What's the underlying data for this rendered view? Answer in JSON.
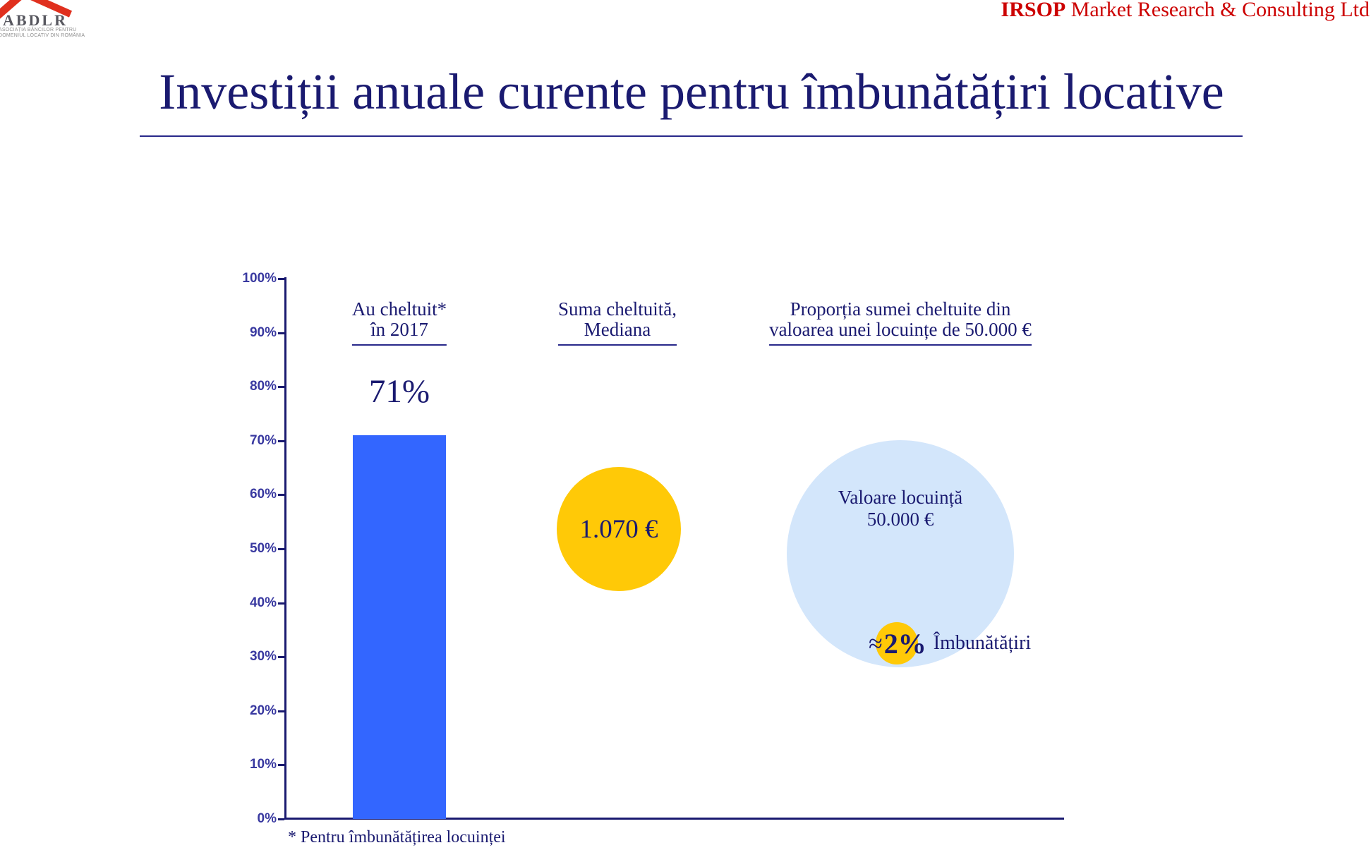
{
  "header": {
    "logo_acronym": "ABDLR",
    "logo_tagline_line1": "ASOCIAȚIA BĂNCILOR PENTRU",
    "logo_tagline_line2": "DOMENIUL LOCATIV DIN ROMÂNIA",
    "agency_bold": "IRSOP",
    "agency_rest": " Market Research & Consulting Ltd"
  },
  "title": "Investiții anuale curente pentru îmbunătățiri locative",
  "chart_data": {
    "type": "bar",
    "title": "Investiții anuale curente pentru îmbunătățiri locative",
    "ylim": [
      0,
      100
    ],
    "yticks": [
      "0%",
      "10%",
      "20%",
      "30%",
      "40%",
      "50%",
      "60%",
      "70%",
      "80%",
      "90%",
      "100%"
    ],
    "grid": false,
    "columns": [
      {
        "kind": "bar",
        "header_line1": "Au cheltuit*",
        "header_line2": "în 2017",
        "value_pct": 71,
        "value_label": "71%",
        "bar_color": "#3366FF"
      },
      {
        "kind": "bubble",
        "header_line1": "Suma cheltuită,",
        "header_line2": "Mediana",
        "bubble_label": "1.070 €",
        "bubble_color": "#FFC907"
      },
      {
        "kind": "bubble-comparison",
        "header_line1": "Proporția sumei cheltuite din",
        "header_line2": "valoarea unei locuințe de 50.000 €",
        "big_bubble_line1": "Valoare locuință",
        "big_bubble_line2": "50.000 €",
        "big_bubble_color": "#D3E6FB",
        "small_bubble_approx": "≈",
        "small_bubble_pct": "2%",
        "small_bubble_label": "Îmbunătățiri",
        "small_bubble_color": "#FFC907"
      }
    ],
    "footnote": "* Pentru îmbunătățirea locuinței"
  },
  "colors": {
    "navy_text": "#1a1a70",
    "axis_label_blue": "#3939a0",
    "bar_blue": "#3366FF",
    "bubble_yellow": "#FFC907",
    "bubble_light_blue": "#D3E6FB",
    "agency_red": "#cc0000",
    "logo_red": "#E0301E"
  }
}
